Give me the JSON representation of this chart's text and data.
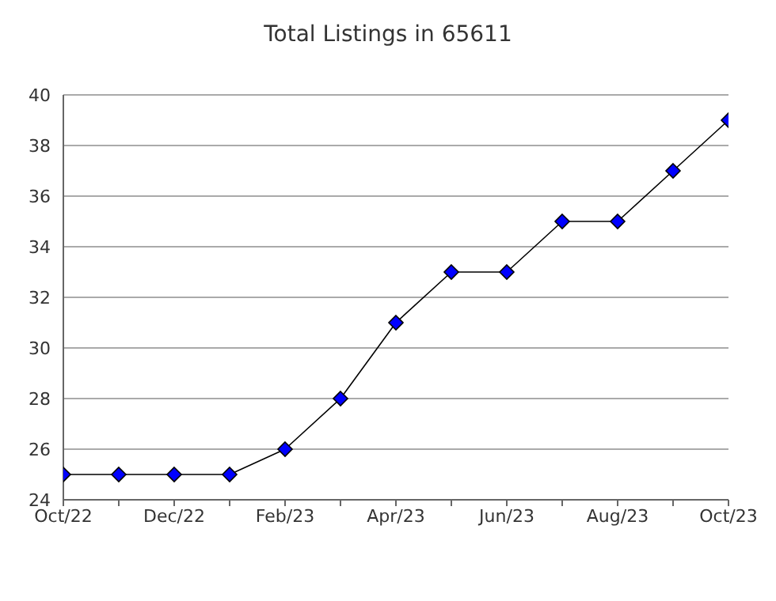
{
  "chart_data": {
    "type": "line",
    "title": "Total Listings in 65611",
    "categories": [
      "Oct/22",
      null,
      "Dec/22",
      null,
      "Feb/23",
      null,
      "Apr/23",
      null,
      "Jun/23",
      null,
      "Aug/23",
      null,
      "Oct/23"
    ],
    "series": [
      {
        "color": "#0000ff",
        "values": [
          25,
          25,
          25,
          25,
          26,
          28,
          31,
          33,
          33,
          35,
          35,
          37,
          39
        ]
      }
    ],
    "ylim": [
      24,
      40
    ],
    "yticks": [
      24,
      26,
      28,
      30,
      32,
      34,
      36,
      38,
      40
    ],
    "grid": "y",
    "marker": "diamond",
    "line_style": "solid",
    "legend": false
  }
}
